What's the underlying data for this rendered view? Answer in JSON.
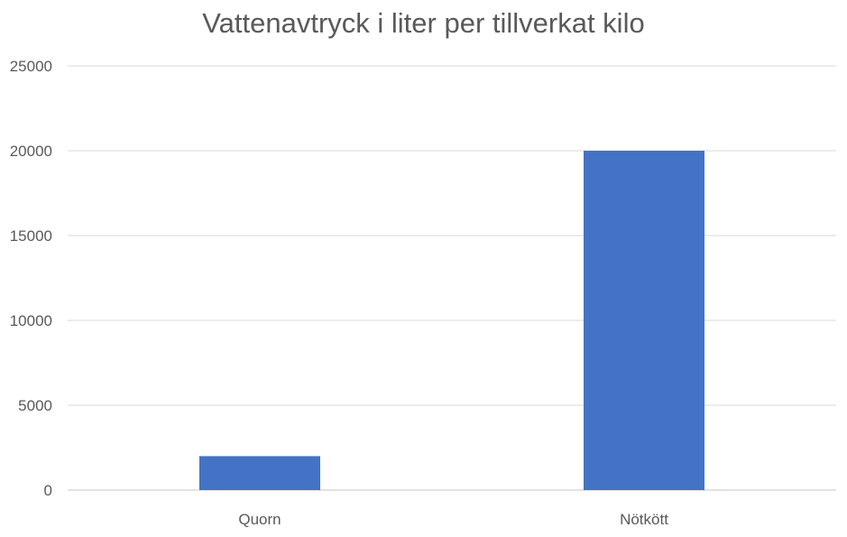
{
  "chart_data": {
    "type": "bar",
    "title": "Vattenavtryck i liter per tillverkat kilo",
    "categories": [
      "Quorn",
      "Nötkött"
    ],
    "values": [
      2000,
      20000
    ],
    "ylim": [
      0,
      25000
    ],
    "yticks": [
      0,
      5000,
      10000,
      15000,
      20000,
      25000
    ],
    "xlabel": "",
    "ylabel": "",
    "grid": true,
    "legend": "none",
    "bar_color": "#4472C4",
    "grid_color": "#D9D9D9",
    "text_color": "#595959"
  }
}
